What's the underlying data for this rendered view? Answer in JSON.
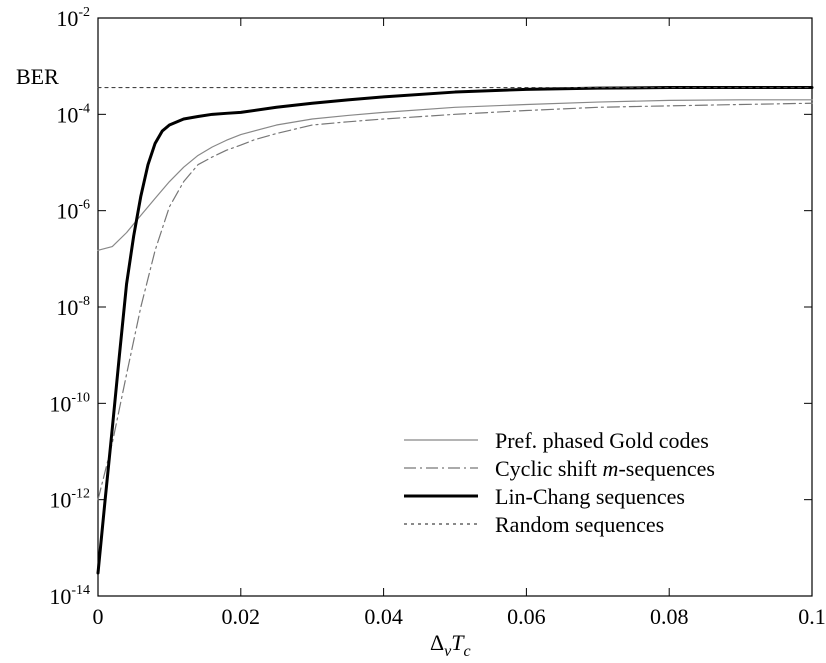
{
  "chart_data": {
    "type": "line",
    "title": "",
    "ylabel": "BER",
    "xlabel": {
      "base": "Δ",
      "sub1": "ν",
      "mid": "T",
      "sub2": "c"
    },
    "xlim": [
      0,
      0.1
    ],
    "ylim": [
      1e-14,
      0.01
    ],
    "yscale": "log",
    "grid": false,
    "legend_position": "lower-right",
    "x_ticks": [
      {
        "value": 0,
        "label": "0"
      },
      {
        "value": 0.02,
        "label": "0.02"
      },
      {
        "value": 0.04,
        "label": "0.04"
      },
      {
        "value": 0.06,
        "label": "0.06"
      },
      {
        "value": 0.08,
        "label": "0.08"
      },
      {
        "value": 0.1,
        "label": "0.1"
      }
    ],
    "y_ticks": [
      {
        "value": 1e-14,
        "base": "10",
        "exp": "-14"
      },
      {
        "value": 1e-12,
        "base": "10",
        "exp": "-12"
      },
      {
        "value": 1e-10,
        "base": "10",
        "exp": "-10"
      },
      {
        "value": 1e-08,
        "base": "10",
        "exp": "-8"
      },
      {
        "value": 1e-06,
        "base": "10",
        "exp": "-6"
      },
      {
        "value": 0.0001,
        "base": "10",
        "exp": "-4"
      },
      {
        "value": 0.01,
        "base": "10",
        "exp": "-2"
      }
    ],
    "series": [
      {
        "name": "Pref. phased Gold codes",
        "style": "thin-solid",
        "color": "#888888",
        "x": [
          0,
          0.002,
          0.004,
          0.006,
          0.008,
          0.01,
          0.012,
          0.014,
          0.016,
          0.018,
          0.02,
          0.025,
          0.03,
          0.035,
          0.04,
          0.05,
          0.06,
          0.07,
          0.08,
          0.09,
          0.1
        ],
        "y": [
          1.5e-07,
          1.8e-07,
          3.5e-07,
          8e-07,
          1.8e-06,
          4e-06,
          8e-06,
          1.4e-05,
          2.1e-05,
          2.9e-05,
          3.8e-05,
          6e-05,
          8e-05,
          9.5e-05,
          0.00011,
          0.00014,
          0.00016,
          0.00018,
          0.000195,
          0.0002,
          0.0002
        ]
      },
      {
        "name": "Cyclic shift m-sequences",
        "name_parts": [
          "Cyclic shift ",
          "m",
          "-sequences"
        ],
        "style": "dash-dot",
        "color": "#777777",
        "x": [
          0,
          0.002,
          0.004,
          0.006,
          0.008,
          0.01,
          0.012,
          0.014,
          0.016,
          0.018,
          0.02,
          0.022,
          0.025,
          0.03,
          0.035,
          0.04,
          0.05,
          0.06,
          0.07,
          0.08,
          0.09,
          0.1
        ],
        "y": [
          1e-12,
          1.5e-11,
          4e-10,
          1e-08,
          1.5e-07,
          1.2e-06,
          4e-06,
          9e-06,
          1.3e-05,
          1.8e-05,
          2.3e-05,
          3e-05,
          4e-05,
          6e-05,
          7e-05,
          8e-05,
          0.0001,
          0.00012,
          0.00014,
          0.00015,
          0.00016,
          0.00017
        ]
      },
      {
        "name": "Lin-Chang sequences",
        "style": "thick-solid",
        "color": "#000000",
        "x": [
          0,
          0.001,
          0.002,
          0.003,
          0.004,
          0.005,
          0.006,
          0.007,
          0.008,
          0.009,
          0.01,
          0.012,
          0.014,
          0.016,
          0.018,
          0.02,
          0.025,
          0.03,
          0.035,
          0.04,
          0.05,
          0.06,
          0.07,
          0.08,
          0.09,
          0.1
        ],
        "y": [
          3e-14,
          1e-12,
          3e-11,
          1e-09,
          3e-08,
          3e-07,
          2e-06,
          9e-06,
          2.5e-05,
          4.5e-05,
          6e-05,
          8e-05,
          9e-05,
          0.0001,
          0.000105,
          0.00011,
          0.00014,
          0.00017,
          0.0002,
          0.00023,
          0.00029,
          0.00033,
          0.00035,
          0.00036,
          0.00036,
          0.00036
        ]
      },
      {
        "name": "Random sequences",
        "style": "dotted",
        "color": "#444444",
        "x": [
          0,
          0.1
        ],
        "y": [
          0.00036,
          0.00036
        ]
      }
    ]
  }
}
